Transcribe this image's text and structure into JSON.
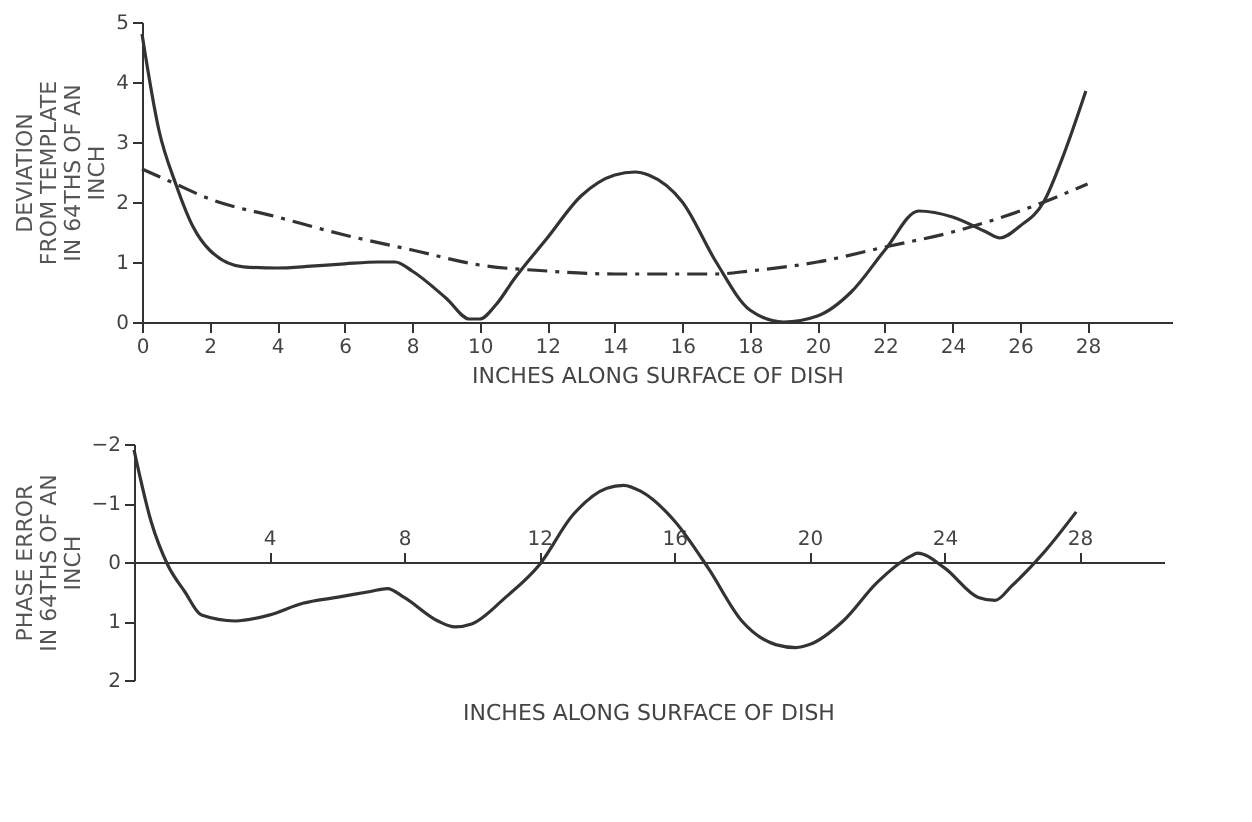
{
  "chart_data": [
    {
      "type": "line",
      "xlabel": "INCHES   ALONG   SURFACE   OF   DISH",
      "ylabel": "DEVIATION\nFROM TEMPLATE\nIN 64THS OF AN\nINCH",
      "xlim": [
        0,
        30.5
      ],
      "xticks": [
        0,
        2,
        4,
        6,
        8,
        10,
        12,
        14,
        16,
        18,
        20,
        22,
        24,
        26,
        28
      ],
      "ylim": [
        0,
        5
      ],
      "yticks": [
        0,
        1,
        2,
        3,
        4,
        5
      ],
      "grid": false,
      "marker": "none",
      "series": [
        {
          "color": "#333333",
          "line_style": "solid",
          "x": [
            0,
            0.5,
            1,
            1.5,
            2,
            3,
            4,
            5,
            6,
            7,
            7.5,
            8,
            9,
            9.7,
            10,
            10.5,
            11,
            12,
            13,
            14,
            14.6,
            15,
            16,
            17,
            18,
            19,
            20,
            21,
            22,
            23,
            24,
            25,
            25.4,
            26,
            26.7,
            27.3,
            27.95
          ],
          "values": [
            4.8,
            3.2,
            2.3,
            1.6,
            1.2,
            0.92,
            0.9,
            0.93,
            0.97,
            1.0,
            1.0,
            0.85,
            0.4,
            0.05,
            0.05,
            0.3,
            0.7,
            1.4,
            2.1,
            2.45,
            2.5,
            2.45,
            2.0,
            1.0,
            0.2,
            0.0,
            0.1,
            0.5,
            1.2,
            1.85,
            1.75,
            1.5,
            1.4,
            1.6,
            2.0,
            2.8,
            3.85
          ]
        },
        {
          "color": "#333333",
          "line_style": "dashed",
          "x": [
            0,
            1,
            2,
            4,
            6,
            8,
            10,
            12,
            14,
            16,
            17,
            18,
            20,
            22,
            24,
            26,
            28
          ],
          "values": [
            2.55,
            2.3,
            2.05,
            1.75,
            1.45,
            1.2,
            0.95,
            0.85,
            0.8,
            0.8,
            0.8,
            0.85,
            1.0,
            1.25,
            1.5,
            1.85,
            2.3
          ]
        }
      ]
    },
    {
      "type": "line",
      "xlabel": "INCHES   ALONG   SURFACE   OF   DISH",
      "ylabel": "PHASE   ERROR\nIN 64THS OF AN\nINCH",
      "xlim": [
        0,
        30.5
      ],
      "xticks": [
        4,
        8,
        12,
        16,
        20,
        24,
        28
      ],
      "ylim": [
        2,
        -2
      ],
      "yticks": [
        -2,
        -1,
        0,
        1,
        2
      ],
      "grid": false,
      "marker": "none",
      "series": [
        {
          "color": "#333333",
          "line_style": "solid",
          "x": [
            0,
            0.5,
            1,
            1.5,
            2,
            3,
            4,
            5,
            6,
            7,
            7.5,
            8,
            9,
            9.5,
            10,
            11,
            12,
            13,
            14,
            14.5,
            15,
            16,
            17,
            18,
            19,
            19.6,
            20,
            21,
            22,
            23,
            23.2,
            24,
            25,
            25.5,
            26,
            27,
            27.9
          ],
          "values": [
            -1.9,
            -0.7,
            0.05,
            0.5,
            0.9,
            1.0,
            0.9,
            0.7,
            0.6,
            0.5,
            0.45,
            0.6,
            1.0,
            1.1,
            1.05,
            0.6,
            0.05,
            -0.8,
            -1.25,
            -1.3,
            -1.2,
            -0.7,
            0.1,
            1.0,
            1.4,
            1.45,
            1.4,
            1.0,
            0.35,
            -0.1,
            -0.15,
            0.1,
            0.6,
            0.65,
            0.4,
            -0.2,
            -0.85
          ]
        }
      ]
    }
  ]
}
